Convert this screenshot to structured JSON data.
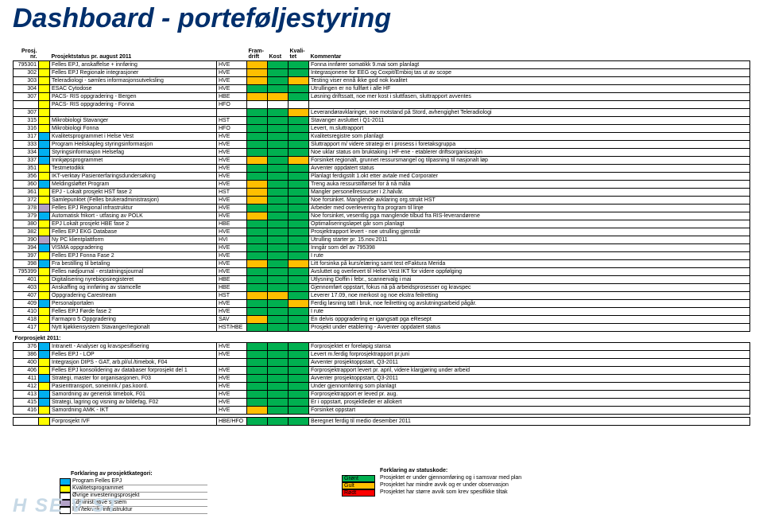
{
  "title": "Dashboard - porteføljestyring",
  "columns": {
    "nr": "Prosj. nr.",
    "status": "Prosjektstatus pr. august 2011",
    "org": "",
    "fram": "Fram-drift",
    "kost": "Kost",
    "kval": "Kvali-tet",
    "kom": "Kommentar"
  },
  "catColors": {
    "yellow": "#ffff00",
    "blue": "#00b0f0",
    "purple": "#b2a1c7"
  },
  "statusColors": {
    "green": "#00b050",
    "amber": "#ffbf00",
    "red": "#ff0000"
  },
  "rows": [
    {
      "nr": "795301",
      "cat": "yellow",
      "name": "Felles EPJ, anskaffelse + innføring",
      "org": "HVE",
      "f": "amber",
      "k": "green",
      "q": "green",
      "kom": "Fonna innfører somatikk 9.mai som planlagt"
    },
    {
      "nr": "302",
      "cat": "yellow",
      "name": "Felles EPJ Regionale integrasjoner",
      "org": "HVE",
      "f": "amber",
      "k": "green",
      "q": "green",
      "kom": "Integrasjonene for EEG og Coxpit/Embioj tas ut av scope"
    },
    {
      "nr": "303",
      "cat": "yellow",
      "name": "Teleradiologi - sømles informasjonsutveksling",
      "org": "HVE",
      "f": "amber",
      "k": "green",
      "q": "amber",
      "kom": "Testing viser ennå ikke god nok kvalitet"
    },
    {
      "nr": "304",
      "cat": "yellow",
      "name": "ESAC Cytodose",
      "org": "HVE",
      "f": "green",
      "k": "green",
      "q": "green",
      "kom": "Utrullingen er no fullført i alle HF"
    },
    {
      "nr": "307",
      "cat": "yellow",
      "name": "PACS- RIS oppgradering - Bergen",
      "org": "HBE",
      "f": "amber",
      "k": "amber",
      "q": "green",
      "kom": "Løsning driftssatt, noe mer kost i sluttfasen, sluttrapport avventes"
    },
    {
      "nr": "",
      "cat": "yellow",
      "name": "PACS- RIS oppgradering - Fonna",
      "org": "HFO",
      "f": "",
      "k": "",
      "q": "",
      "kom": ""
    },
    {
      "nr": "307",
      "cat": "yellow",
      "name": "",
      "org": "",
      "f": "green",
      "k": "green",
      "q": "amber",
      "kom": "Leverandøravklaringer, noe motstand på Stord, avhengighet Teleradiologi"
    },
    {
      "nr": "315",
      "cat": "yellow",
      "name": "Mikrobiologi Stavanger",
      "org": "HST",
      "f": "green",
      "k": "green",
      "q": "green",
      "kom": "Stavanger avsluttet i Q1-2011"
    },
    {
      "nr": "316",
      "cat": "yellow",
      "name": "Mikrobiologi Fonna",
      "org": "HFO",
      "f": "green",
      "k": "green",
      "q": "green",
      "kom": "Levert, m.sluttrapport"
    },
    {
      "nr": "317",
      "cat": "blue",
      "name": "Kvalitetsprogrammet i Helse Vest",
      "org": "HVE",
      "f": "green",
      "k": "green",
      "q": "green",
      "kom": "Kvalitetsregistre som planlagt"
    },
    {
      "nr": "333",
      "cat": "blue",
      "name": "Program Heilskapleg styringsinformasjon",
      "org": "HVE",
      "f": "green",
      "k": "green",
      "q": "green",
      "kom": "Sluttrapport m/ videre strategi er i prosess i foretaksgruppa"
    },
    {
      "nr": "334",
      "cat": "blue",
      "name": "Styringsinformasjon Helsefag",
      "org": "HVE",
      "f": "green",
      "k": "green",
      "q": "green",
      "kom": "Noe uklar status om bruktaking i HF-ene - etablerer driftsorganisasjon"
    },
    {
      "nr": "337",
      "cat": "blue",
      "name": "Innkjøpsprogrammet",
      "org": "HVE",
      "f": "amber",
      "k": "green",
      "q": "amber",
      "kom": "Forsinket regionalt, grunnet ressursmangel og tilpasning til nasjonalt løp"
    },
    {
      "nr": "351",
      "cat": "yellow",
      "name": "Testmetodikk",
      "org": "HVE",
      "f": "green",
      "k": "green",
      "q": "green",
      "kom": "Avventer oppdatert status"
    },
    {
      "nr": "356",
      "cat": "yellow",
      "name": "IKT-verktøy Pasienterfaringsdundersøking",
      "org": "HVE",
      "f": "green",
      "k": "green",
      "q": "green",
      "kom": "Planlagt ferdigstilt 1.okt etter avtale med Corporater"
    },
    {
      "nr": "360",
      "cat": "blue",
      "name": "Meldingsløftet Program",
      "org": "HVE",
      "f": "amber",
      "k": "green",
      "q": "green",
      "kom": "Treng auka ressurstilførsel for å nå måla"
    },
    {
      "nr": "361",
      "cat": "yellow",
      "name": "EPJ - Lokalt prosjekt HST fase 2",
      "org": "HST",
      "f": "amber",
      "k": "green",
      "q": "green",
      "kom": "Mangler personellressurser i 2.halvår."
    },
    {
      "nr": "372",
      "cat": "yellow",
      "name": "Samlepunktet (Felles brukeradministrasjon)",
      "org": "HVE",
      "f": "amber",
      "k": "green",
      "q": "green",
      "kom": "Noe forsinket. Manglende avklaring org.strukt HST"
    },
    {
      "nr": "378",
      "cat": "purple",
      "name": "Felles EPJ Regional infrastruktur",
      "org": "HVE",
      "f": "green",
      "k": "green",
      "q": "green",
      "kom": "Arbeider med overlevering fra program til linje"
    },
    {
      "nr": "379",
      "cat": "blue",
      "name": "Automatisk frikort - utfasing av POLK",
      "org": "HVE",
      "f": "amber",
      "k": "green",
      "q": "green",
      "kom": "Noe forsinket, vesentlig pga manglende tilbud fra RIS-leverandørene"
    },
    {
      "nr": "380",
      "cat": "yellow",
      "name": "EPJ Lokalt prosjekt HBE fase 2",
      "org": "HBE",
      "f": "green",
      "k": "green",
      "q": "green",
      "kom": "Optimaliseringsløpet går som planlagt"
    },
    {
      "nr": "382",
      "cat": "yellow",
      "name": "Felles EPJ EKG Database",
      "org": "HVE",
      "f": "green",
      "k": "green",
      "q": "green",
      "kom": "Prosjektrapport levert - noe utrulling gjenstår"
    },
    {
      "nr": "390",
      "cat": "purple",
      "name": "Ny PC klientplattform",
      "org": "HVI",
      "f": "green",
      "k": "green",
      "q": "green",
      "kom": "Utrulling starter pr. 15.nov.2011"
    },
    {
      "nr": "394",
      "cat": "blue",
      "name": "VISMA oppgradering",
      "org": "HVE",
      "f": "green",
      "k": "green",
      "q": "green",
      "kom": "Inngår som del av 795398"
    },
    {
      "nr": "397",
      "cat": "yellow",
      "name": "Felles EPJ Fonna Fase 2",
      "org": "HVE",
      "f": "green",
      "k": "green",
      "q": "green",
      "kom": "I rute"
    },
    {
      "nr": "398",
      "cat": "blue",
      "name": "Fra bestilling til betaling",
      "org": "HVE",
      "f": "amber",
      "k": "green",
      "q": "amber",
      "kom": "Litt forsinka på kurs/elæring samt test eFaktura Merida"
    },
    {
      "nr": "795399",
      "cat": "yellow",
      "name": "Felles nødjournal - erstatningsjournal",
      "org": "HVE",
      "f": "green",
      "k": "green",
      "q": "green",
      "kom": "Avsluttet og overlevert til Helse Vest IKT for videre oppfølging"
    },
    {
      "nr": "401",
      "cat": "yellow",
      "name": "Digitalisering nyrebiopsiregisteret",
      "org": "HBE",
      "f": "green",
      "k": "green",
      "q": "green",
      "kom": "Utlysning Doffin i febr., scannervalg i mai"
    },
    {
      "nr": "403",
      "cat": "yellow",
      "name": "Anskaffing og innføring av stamcelle",
      "org": "HBE",
      "f": "green",
      "k": "green",
      "q": "green",
      "kom": "Gjennomført oppstart, fokus nå på arbeidsprosesser og kravspec"
    },
    {
      "nr": "407",
      "cat": "yellow",
      "name": "Oppgradering Carestream",
      "org": "HST",
      "f": "amber",
      "k": "amber",
      "q": "green",
      "kom": "Leverer 17.09, noe merkost og noe ekstra feilretting"
    },
    {
      "nr": "409",
      "cat": "blue",
      "name": "Personalportalen",
      "org": "HVE",
      "f": "green",
      "k": "green",
      "q": "amber",
      "kom": "Ferdig løsning tatt i bruk, noe feilretting og avslutningsarbeid pågår."
    },
    {
      "nr": "410",
      "cat": "yellow",
      "name": "Felles EPJ Førde fase 2",
      "org": "HVE",
      "f": "green",
      "k": "green",
      "q": "green",
      "kom": "I rute"
    },
    {
      "nr": "418",
      "cat": "yellow",
      "name": "Farmapro 5 Oppgradering",
      "org": "SAV",
      "f": "amber",
      "k": "green",
      "q": "green",
      "kom": "En delvis oppgradering er igangsatt pga eResept"
    },
    {
      "nr": "417",
      "cat": "yellow",
      "name": "Nytt kjøkkensystem Stavanger/regionalt",
      "org": "HST/HBE",
      "f": "green",
      "k": "green",
      "q": "green",
      "kom": "Prosjekt under etablering - Avventer oppdatert status"
    }
  ],
  "section2": "Forprosjekt 2011:",
  "rows2": [
    {
      "nr": "376",
      "cat": "blue",
      "name": "Intranett - Analyser og kravspesifisering",
      "org": "HVE",
      "f": "green",
      "k": "green",
      "q": "green",
      "kom": "Forprosjektet er foreløpig stansa"
    },
    {
      "nr": "386",
      "cat": "blue",
      "name": "Felles EPJ - LOP",
      "org": "HVE",
      "f": "green",
      "k": "green",
      "q": "green",
      "kom": "Levert m.ferdig forprosjektrapport pr.juni"
    },
    {
      "nr": "400",
      "cat": "yellow",
      "name": "Integrasjon DIPS - GAT, arb.pl/ul./timebok, F04",
      "org": "",
      "f": "green",
      "k": "green",
      "q": "green",
      "kom": "Avventer prosjektoppstart, Q3-2011"
    },
    {
      "nr": "406",
      "cat": "yellow",
      "name": "Felles EPJ konsolidering av databaser forprosjekt del 1",
      "org": "HVE",
      "f": "green",
      "k": "green",
      "q": "green",
      "kom": "Forprosjektrapport levert pr. april, videre klargjøring under arbeid"
    },
    {
      "nr": "411",
      "cat": "blue",
      "name": "Strategi, master for organisasjonen, F03",
      "org": "HVE",
      "f": "green",
      "k": "green",
      "q": "green",
      "kom": "Avventer prosjektoppstart, Q3-2011"
    },
    {
      "nr": "412",
      "cat": "yellow",
      "name": "Pasienttransport, soneinnk./ pas.koord.",
      "org": "HVE",
      "f": "green",
      "k": "green",
      "q": "green",
      "kom": "Under gjennomføring som planlagt"
    },
    {
      "nr": "413",
      "cat": "blue",
      "name": "Samordning av generisk timebok, F01",
      "org": "HVE",
      "f": "green",
      "k": "green",
      "q": "green",
      "kom": "Forprosjektrapport er leved pr. aug."
    },
    {
      "nr": "415",
      "cat": "blue",
      "name": "Strategi, lagring og visning av bildefag, F02",
      "org": "HVE",
      "f": "green",
      "k": "green",
      "q": "green",
      "kom": "Er i oppstart, prosjektleder er allokert"
    },
    {
      "nr": "416",
      "cat": "yellow",
      "name": "Samordning AMK - IKT",
      "org": "HVE",
      "f": "amber",
      "k": "green",
      "q": "green",
      "kom": "Forsinket oppstart"
    }
  ],
  "rows3": [
    {
      "nr": "",
      "cat": "yellow",
      "name": "Forprosjekt IVF",
      "org": "HBE/HFO",
      "f": "green",
      "k": "green",
      "q": "green",
      "kom": "Beregnet ferdig til medio desember 2011"
    }
  ],
  "legend1": {
    "title": "Forklaring av prosjektkategori:",
    "items": [
      {
        "c": "blue",
        "t": "Program Felles EPJ"
      },
      {
        "c": "yellow",
        "t": "Kvalitetsprogrammet"
      },
      {
        "c": "",
        "t": "Øvrige investeringsprosjekt"
      },
      {
        "c": "purple",
        "t": "Administrative system"
      },
      {
        "c": "",
        "t": "IKT/teknisk/ infrastruktur"
      }
    ]
  },
  "legend2": {
    "title": "Forklaring av statuskode:",
    "items": [
      {
        "c": "green",
        "lbl": "Grønt",
        "t": "Prosjektet er under gjennomføring og i samsvar med plan"
      },
      {
        "c": "amber",
        "lbl": "Gult",
        "t": "Prosjektet har mindre avvik og er under observasjon"
      },
      {
        "c": "red",
        "lbl": "Rødt",
        "t": "Prosjektet har større avvik som krev spesifikke tiltak"
      }
    ]
  },
  "logo": "H  SE         V  ST"
}
